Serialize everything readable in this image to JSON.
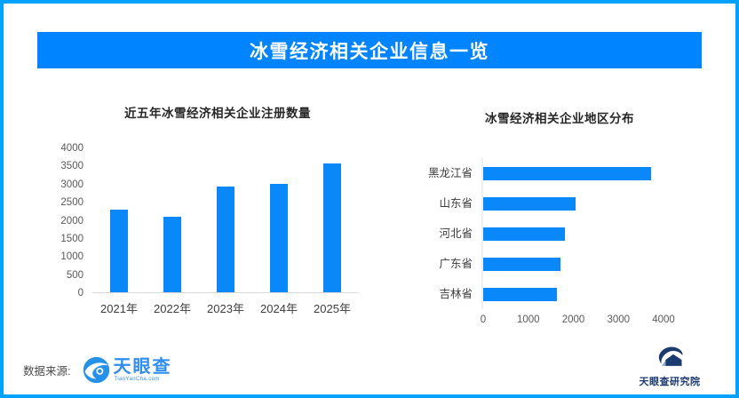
{
  "banner": {
    "title": "冰雪经济相关企业信息一览"
  },
  "colors": {
    "border": "#00A2FF",
    "banner": "#0084FF",
    "bar": "#0A88FA",
    "axis_line": "#D9D9D9",
    "title_text": "#262626",
    "tick_text": "#595959",
    "category_text": "#3d3d3d",
    "source_blue": "#2E8DEF",
    "institute_navy": "#1B3A70"
  },
  "chart_data": [
    {
      "type": "bar",
      "orientation": "vertical",
      "title": "近五年冰雪经济相关企业注册数量",
      "categories": [
        "2021年",
        "2022年",
        "2023年",
        "2024年",
        "2025年"
      ],
      "values": [
        2300,
        2100,
        2950,
        3020,
        3580
      ],
      "ylim": [
        0,
        4000
      ],
      "yticks": [
        0,
        500,
        1000,
        1500,
        2000,
        2500,
        3000,
        3500,
        4000
      ],
      "grid": false,
      "legend": "none"
    },
    {
      "type": "bar",
      "orientation": "horizontal",
      "title": "冰雪经济相关企业地区分布",
      "categories": [
        "黑龙江省",
        "山东省",
        "河北省",
        "广东省",
        "吉林省"
      ],
      "values": [
        3760,
        2060,
        1840,
        1730,
        1650
      ],
      "xlim": [
        0,
        4000
      ],
      "xticks": [
        0,
        1000,
        2000,
        3000,
        4000
      ],
      "grid": false,
      "legend": "none"
    }
  ],
  "footer": {
    "source_label": "数据来源:",
    "source_logo": {
      "name": "天眼查",
      "sub": "TianYanCha.com",
      "icon": "tianyancha-eye-icon"
    },
    "institute": {
      "label": "天眼查研究院",
      "icon": "tianyancha-institute-icon"
    }
  }
}
